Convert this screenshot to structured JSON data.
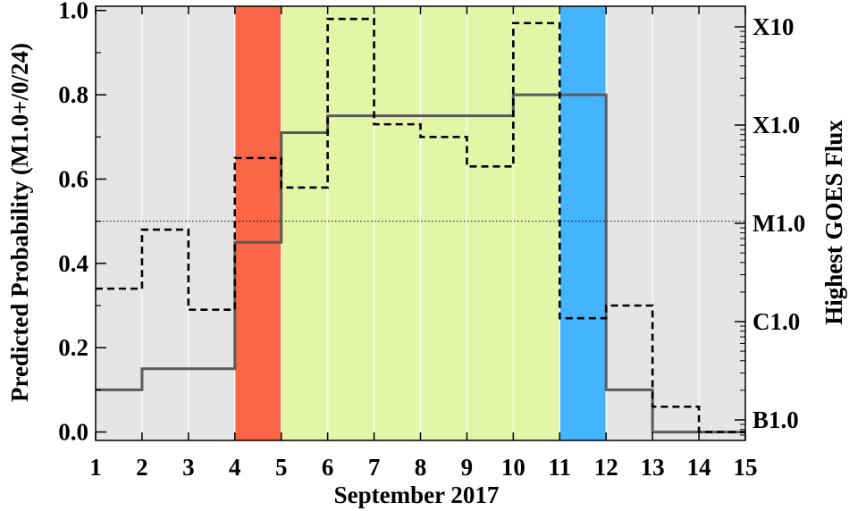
{
  "chart_data": {
    "type": "line",
    "xlabel": "September 2017",
    "ylabel": "Predicted Probability (M1.0+/0/24)",
    "y2label": "Highest GOES Flux",
    "xlim": [
      1,
      15
    ],
    "ylim": [
      -0.02,
      1.01
    ],
    "x_ticks": [
      "1",
      "2",
      "3",
      "4",
      "5",
      "6",
      "7",
      "8",
      "9",
      "10",
      "11",
      "12",
      "13",
      "14",
      "15"
    ],
    "y_ticks": [
      {
        "value": 0.0,
        "label": "0.0"
      },
      {
        "value": 0.2,
        "label": "0.2"
      },
      {
        "value": 0.4,
        "label": "0.4"
      },
      {
        "value": 0.6,
        "label": "0.6"
      },
      {
        "value": 0.8,
        "label": "0.8"
      },
      {
        "value": 1.0,
        "label": "1.0"
      }
    ],
    "y2_scale": "log",
    "y2_ticks": [
      {
        "label": "B1.0",
        "decade": 0
      },
      {
        "label": "C1.0",
        "decade": 1
      },
      {
        "label": "M1.0",
        "decade": 2
      },
      {
        "label": "X1.0",
        "decade": 3
      },
      {
        "label": "X10",
        "decade": 4
      }
    ],
    "threshold_line": {
      "value": 0.5,
      "style": "dotted"
    },
    "background_bands": [
      {
        "from": 1,
        "to": 4,
        "color": "#e5e5e5"
      },
      {
        "from": 4,
        "to": 5,
        "color": "#fa6646"
      },
      {
        "from": 5,
        "to": 11,
        "color": "#e4f5a8"
      },
      {
        "from": 11,
        "to": 12,
        "color": "#45b4ff"
      },
      {
        "from": 12,
        "to": 15,
        "color": "#e5e5e5"
      }
    ],
    "vertical_grid": true,
    "series": [
      {
        "style": "solid",
        "color": "#5a5a5a",
        "x": [
          1,
          2,
          3,
          4,
          5,
          6,
          7,
          8,
          9,
          10,
          11,
          12,
          13,
          14
        ],
        "values": [
          0.1,
          0.15,
          0.15,
          0.45,
          0.71,
          0.75,
          0.75,
          0.75,
          0.75,
          0.8,
          0.8,
          0.1,
          0.0,
          0.0
        ]
      },
      {
        "style": "dashed",
        "color": "#000000",
        "x": [
          1,
          2,
          3,
          4,
          5,
          6,
          7,
          8,
          9,
          10,
          11,
          12,
          13,
          14
        ],
        "values": [
          0.34,
          0.48,
          0.29,
          0.65,
          0.58,
          0.98,
          0.73,
          0.7,
          0.63,
          0.97,
          0.27,
          0.3,
          0.06,
          0.0
        ]
      }
    ]
  }
}
